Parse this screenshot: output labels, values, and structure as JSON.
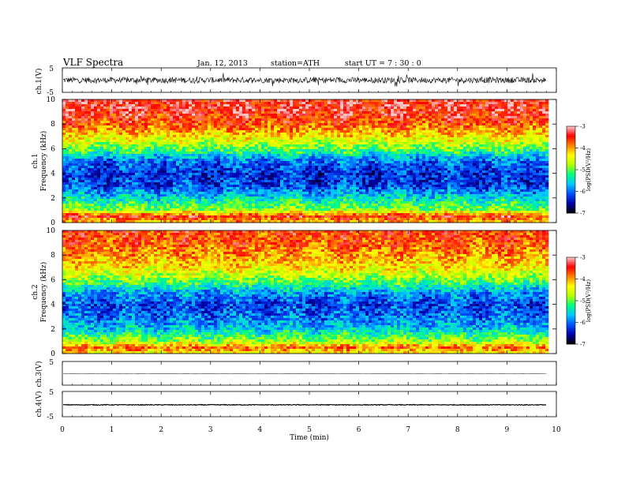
{
  "header": {
    "title": "VLF  Spectra",
    "date": "Jan. 12, 2013",
    "station": "station=ATH",
    "start": "start  UT  =   7  : 30 : 0"
  },
  "labels": {
    "ch1_volt": "ch.1(V)",
    "ch1_freq": "ch.1",
    "ch2_freq": "ch.2",
    "frequency": "Frequency  (kHz)",
    "ch3_volt": "ch.3(V)",
    "ch4_volt": "ch.4(V)",
    "psd": "log(PSD(V²/Hz)"
  },
  "chart_data": [
    {
      "type": "line",
      "name": "ch.1(V)",
      "ylabel": "ch.1(V)",
      "ylim": [
        -5,
        5
      ],
      "yticks": [
        "5",
        "-5"
      ],
      "description_values": {
        "baseline": 0,
        "noise_amplitude": 1.2
      }
    },
    {
      "type": "heatmap",
      "ylabel": "ch.1 Frequency (kHz)",
      "ylim": [
        0,
        10
      ],
      "yticks": [
        "0",
        "2",
        "4",
        "6",
        "8",
        "10"
      ],
      "colorbar": {
        "label": "log(PSD(V²/Hz)",
        "range": [
          -7,
          -3
        ],
        "ticks": [
          "-3",
          "-4",
          "-5",
          "-6",
          "-7"
        ]
      },
      "profile_khz_to_logpsd": [
        [
          0,
          -4.2
        ],
        [
          0.5,
          -3.5
        ],
        [
          1,
          -4.8
        ],
        [
          2,
          -5.5
        ],
        [
          3,
          -6.2
        ],
        [
          4,
          -6.3
        ],
        [
          5,
          -6.0
        ],
        [
          6,
          -5.0
        ],
        [
          7,
          -4.3
        ],
        [
          8,
          -3.7
        ],
        [
          9,
          -3.4
        ],
        [
          10,
          -3.4
        ]
      ]
    },
    {
      "type": "heatmap",
      "ylabel": "ch.2 Frequency (kHz)",
      "ylim": [
        0,
        10
      ],
      "yticks": [
        "0",
        "2",
        "4",
        "6",
        "8",
        "10"
      ],
      "colorbar": {
        "label": "log(PSD(V²/Hz)",
        "range": [
          -7,
          -3
        ],
        "ticks": [
          "-3",
          "-4",
          "-5",
          "-6",
          "-7"
        ]
      },
      "profile_khz_to_logpsd": [
        [
          0,
          -4.4
        ],
        [
          0.5,
          -3.8
        ],
        [
          1,
          -4.8
        ],
        [
          2,
          -5.6
        ],
        [
          3,
          -6.0
        ],
        [
          4,
          -6.2
        ],
        [
          5,
          -5.8
        ],
        [
          6,
          -4.9
        ],
        [
          7,
          -4.3
        ],
        [
          8,
          -4.0
        ],
        [
          9,
          -3.7
        ],
        [
          10,
          -3.6
        ]
      ]
    },
    {
      "type": "line",
      "name": "ch.3(V)",
      "ylabel": "ch.3(V)",
      "ylim": [
        -5,
        5
      ],
      "yticks": [
        "5",
        "-5"
      ],
      "description_values": {
        "baseline": -0.2,
        "noise_amplitude": 0.05
      }
    },
    {
      "type": "line",
      "name": "ch.4(V)",
      "ylabel": "ch.4(V)",
      "ylim": [
        -5,
        5
      ],
      "yticks": [
        "5",
        "-5"
      ],
      "description_values": {
        "baseline": -0.3,
        "noise_amplitude": 0.15
      }
    }
  ],
  "xaxis": {
    "label": "Time  (min)",
    "xlim": [
      0,
      10
    ],
    "ticks": [
      "0",
      "1",
      "2",
      "3",
      "4",
      "5",
      "6",
      "7",
      "8",
      "9",
      "10"
    ],
    "data_end_min": 9.8
  },
  "colors": {
    "scale": [
      "#000000",
      "#0000aa",
      "#0050ff",
      "#00c8ff",
      "#00ff80",
      "#b4ff00",
      "#ffff00",
      "#ff8000",
      "#ff0000",
      "#ffc8c8"
    ]
  }
}
